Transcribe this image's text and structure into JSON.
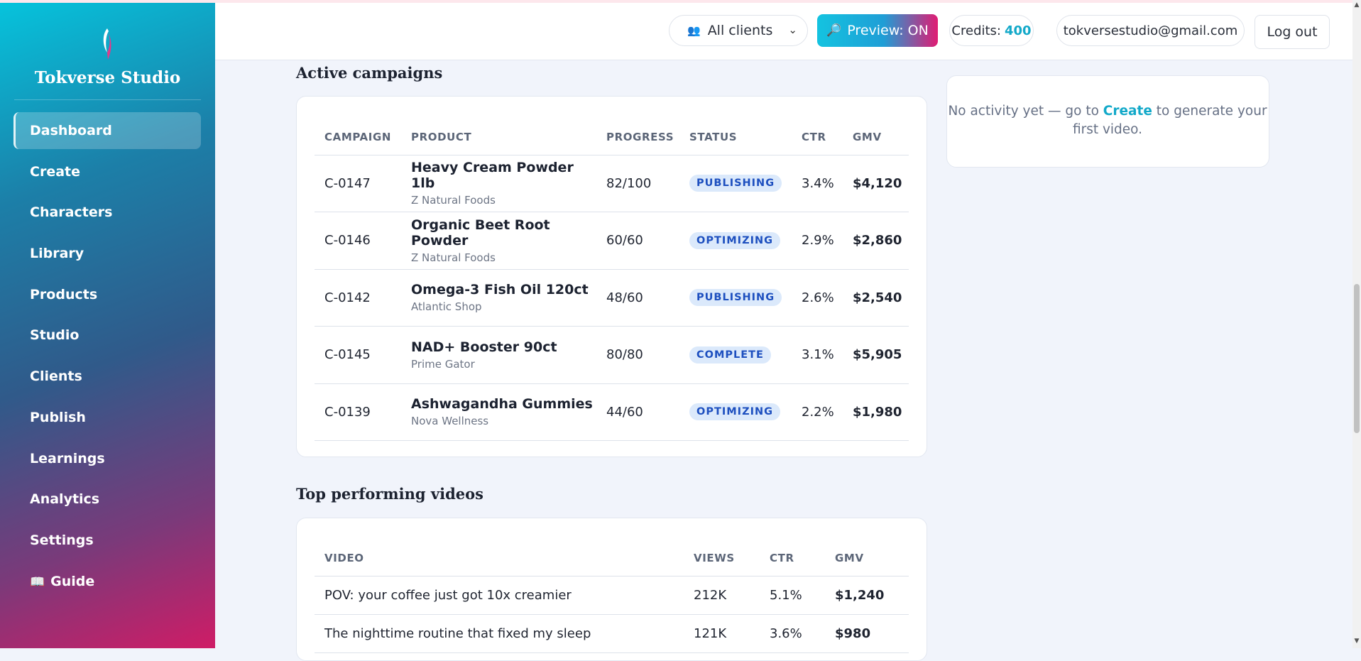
{
  "sidebar": {
    "brand": "Tokverse Studio",
    "items": [
      {
        "label": "Dashboard"
      },
      {
        "label": "Create"
      },
      {
        "label": "Characters"
      },
      {
        "label": "Library"
      },
      {
        "label": "Products"
      },
      {
        "label": "Studio"
      },
      {
        "label": "Clients"
      },
      {
        "label": "Publish"
      },
      {
        "label": "Learnings"
      },
      {
        "label": "Analytics"
      },
      {
        "label": "Settings"
      },
      {
        "label": "Guide",
        "icon": "book-icon"
      }
    ]
  },
  "header": {
    "client_select": "All clients",
    "preview_label": "Preview: ON",
    "credits_label": "Credits:",
    "credits_value": "400",
    "email": "tokversestudio@gmail.com",
    "logout_label": "Log out"
  },
  "campaigns": {
    "title": "Active campaigns",
    "columns": [
      "CAMPAIGN",
      "PRODUCT",
      "PROGRESS",
      "STATUS",
      "CTR",
      "GMV"
    ],
    "rows": [
      {
        "id": "C-0147",
        "product": "Heavy Cream Powder 1lb",
        "brand": "Z Natural Foods",
        "progress": "82/100",
        "status": "PUBLISHING",
        "ctr": "3.4%",
        "gmv": "$4,120"
      },
      {
        "id": "C-0146",
        "product": "Organic Beet Root Powder",
        "brand": "Z Natural Foods",
        "progress": "60/60",
        "status": "OPTIMIZING",
        "ctr": "2.9%",
        "gmv": "$2,860"
      },
      {
        "id": "C-0142",
        "product": "Omega-3 Fish Oil 120ct",
        "brand": "Atlantic Shop",
        "progress": "48/60",
        "status": "PUBLISHING",
        "ctr": "2.6%",
        "gmv": "$2,540"
      },
      {
        "id": "C-0145",
        "product": "NAD+ Booster 90ct",
        "brand": "Prime Gator",
        "progress": "80/80",
        "status": "COMPLETE",
        "ctr": "3.1%",
        "gmv": "$5,905"
      },
      {
        "id": "C-0139",
        "product": "Ashwagandha Gummies",
        "brand": "Nova Wellness",
        "progress": "44/60",
        "status": "OPTIMIZING",
        "ctr": "2.2%",
        "gmv": "$1,980"
      }
    ]
  },
  "activity": {
    "text_before": "No activity yet — go to ",
    "link": "Create",
    "text_after": " to generate your first video."
  },
  "videos": {
    "title": "Top performing videos",
    "columns": [
      "VIDEO",
      "VIEWS",
      "CTR",
      "GMV"
    ],
    "rows": [
      {
        "title": "POV: your coffee just got 10x creamier",
        "views": "212K",
        "ctr": "5.1%",
        "gmv": "$1,240"
      },
      {
        "title": "The nighttime routine that fixed my sleep",
        "views": "121K",
        "ctr": "3.6%",
        "gmv": "$980"
      }
    ]
  },
  "colors": {
    "accent": "#13a9c9",
    "badge_bg": "#dbe9fb",
    "badge_text": "#1d4fbf"
  }
}
